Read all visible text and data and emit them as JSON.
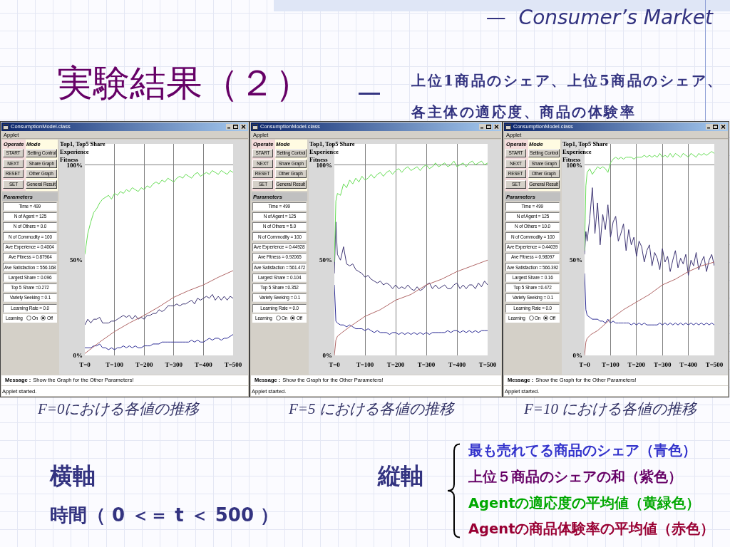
{
  "chart_data": [
    {
      "type": "other",
      "title": "実験結果（２）",
      "subtitle": "上位1商品のシェア、上位5商品のシェア、各主体の適応度、商品の体験率",
      "annotations": [
        "—  Consumer’s Market",
        "—"
      ]
    },
    {
      "type": "other",
      "title": "ConsumptionModel.class",
      "annotations": [
        "Applet",
        "Operate",
        "Mode",
        "START",
        "Setting Control",
        "NEXT",
        "Share Graph",
        "RESET",
        "Other Graph",
        "SET",
        "General Result",
        "Parameters",
        "Time = 499",
        "N of Agent = 125",
        "N of Others = 0.0",
        "N of Commodity = 100",
        "Ave Experience = 0.4004",
        "Ave Fitness = 0.87964",
        "Ave Satisfaction = 556.168",
        "Largest Share = 0.096",
        "Top 5 Share =0.272",
        "Variety Seeking = 0.1",
        "Learning Rate = 0.0",
        "Learning",
        "On",
        "Off",
        "Message :",
        "Show the Graph for the Other Parameters!",
        "Applet started."
      ]
    },
    {
      "type": "line",
      "title": "Top1, Top5 Share\nExperience\nFitness",
      "annotations": [
        "F=0における各値の推移"
      ],
      "x": [
        0,
        10,
        20,
        30,
        40,
        50,
        60,
        70,
        80,
        90,
        100,
        110,
        120,
        130,
        140,
        150,
        160,
        170,
        180,
        190,
        200,
        210,
        220,
        230,
        240,
        250,
        260,
        270,
        280,
        290,
        300,
        310,
        320,
        330,
        340,
        350,
        360,
        370,
        380,
        390,
        400,
        410,
        420,
        430,
        440,
        450,
        460,
        470,
        480,
        490,
        500
      ],
      "series": [
        {
          "color": "#2e2e96",
          "values": [
            4,
            4,
            4,
            5,
            5,
            6,
            4,
            4,
            3,
            4,
            3,
            4,
            4,
            5,
            4,
            5,
            4,
            5,
            4,
            4,
            5,
            5,
            5,
            6,
            6,
            6,
            7,
            7,
            7,
            7,
            7,
            7,
            7,
            7,
            7,
            7,
            8,
            7,
            8,
            7,
            7,
            8,
            9,
            8,
            9,
            9,
            8,
            9,
            9,
            10,
            11
          ]
        },
        {
          "color": "#3d3473",
          "values": [
            16,
            19,
            17,
            19,
            19,
            20,
            17,
            17,
            17,
            18,
            18,
            19,
            20,
            21,
            20,
            21,
            19,
            21,
            19,
            20,
            19,
            21,
            21,
            22,
            22,
            24,
            23,
            24,
            26,
            26,
            26,
            27,
            26,
            27,
            27,
            28,
            29,
            27,
            30,
            29,
            30,
            31,
            30,
            32,
            29,
            31,
            29,
            31,
            29,
            31,
            30
          ]
        },
        {
          "color": "#66dd55",
          "values": [
            53,
            64,
            70,
            75,
            77,
            80,
            82,
            83,
            84,
            82,
            85,
            84,
            86,
            85,
            87,
            86,
            88,
            87,
            86,
            88,
            87,
            89,
            88,
            90,
            91,
            90,
            92,
            91,
            93,
            92,
            91,
            93,
            94,
            93,
            95,
            94,
            93,
            95,
            96,
            94,
            95,
            96,
            95,
            97,
            96,
            95,
            97,
            96,
            95,
            97,
            96
          ]
        },
        {
          "color": "#b06666",
          "x": [
            0,
            25,
            50,
            100,
            150,
            200,
            250,
            300,
            350,
            400,
            450,
            500
          ],
          "values": [
            1,
            4,
            7,
            12.5,
            17,
            21,
            25.5,
            30.5,
            34,
            37,
            41,
            44.5
          ]
        }
      ],
      "xlim": [
        0,
        500
      ],
      "xticks": [
        {
          "value": 0,
          "label": "T=0"
        },
        {
          "value": 100,
          "label": "T=100"
        },
        {
          "value": 200,
          "label": "T=200"
        },
        {
          "value": 300,
          "label": "T=300"
        },
        {
          "value": 400,
          "label": "T=400"
        },
        {
          "value": 500,
          "label": "T=500"
        }
      ],
      "ylim": [
        0,
        111
      ],
      "yticks": [
        {
          "value": 0,
          "label": "0%"
        },
        {
          "value": 50,
          "label": "50%"
        },
        {
          "value": 100,
          "label": "100%"
        }
      ],
      "grid": "x",
      "ref_lines": [
        {
          "axis": "y",
          "value": 100,
          "color": "#7f7f7f"
        }
      ]
    },
    {
      "type": "other",
      "title": "ConsumptionModel.class",
      "annotations": [
        "Applet",
        "Operate",
        "Mode",
        "START",
        "Setting Control",
        "NEXT",
        "Share Graph",
        "RESET",
        "Other Graph",
        "SET",
        "General Result",
        "Parameters",
        "Time = 499",
        "N of Agent = 125",
        "N of Others = 5.0",
        "N of Commodity = 100",
        "Ave Experience = 0.44928",
        "Ave Fitness = 0.92065",
        "Ave Satisfaction = 561.472",
        "Largest Share = 0.104",
        "Top 5 Share =0.352",
        "Variety Seeking = 0.1",
        "Learning Rate = 0.0",
        "Learning",
        "On",
        "Off",
        "Message :",
        "Show the Graph for the Other Parameters!",
        "Applet started."
      ]
    },
    {
      "type": "line",
      "title": "Top1, Top5 Share\nExperience\nFitness",
      "annotations": [
        "F=5 における各値の推移"
      ],
      "x": [
        0,
        5,
        10,
        20,
        30,
        40,
        50,
        60,
        70,
        80,
        90,
        100,
        110,
        120,
        130,
        140,
        150,
        160,
        170,
        180,
        190,
        200,
        210,
        220,
        230,
        240,
        250,
        260,
        270,
        280,
        290,
        300,
        310,
        320,
        330,
        340,
        350,
        360,
        370,
        380,
        390,
        400,
        410,
        420,
        430,
        440,
        450,
        460,
        470,
        480,
        490,
        500
      ],
      "series": [
        {
          "color": "#2e2e96",
          "values": [
            37,
            18,
            17,
            16,
            16,
            15,
            16,
            15,
            14,
            14,
            14,
            13,
            14,
            13,
            12,
            13,
            12,
            12,
            12,
            11,
            12,
            12,
            11,
            12,
            11,
            12,
            11,
            12,
            11,
            12,
            11,
            12,
            11,
            12,
            12,
            12,
            12,
            12,
            13,
            12,
            13,
            13,
            12,
            13,
            12,
            13,
            12,
            13,
            12,
            13,
            13,
            13
          ]
        },
        {
          "color": "#3d3473",
          "values": [
            43,
            70,
            53,
            50,
            57,
            48,
            47,
            48,
            45,
            44,
            43,
            41,
            42,
            40,
            39,
            38,
            39,
            37,
            38,
            37,
            35,
            37,
            35,
            36,
            35,
            37,
            35,
            34,
            36,
            34,
            35,
            37,
            38,
            35,
            37,
            35,
            36,
            37,
            35,
            35,
            37,
            38,
            35,
            37,
            35,
            37,
            37,
            35,
            38,
            36,
            39,
            37
          ]
        },
        {
          "color": "#66dd55",
          "values": [
            49,
            81,
            85,
            84,
            90,
            88,
            92,
            90,
            93,
            91,
            94,
            92,
            93,
            95,
            93,
            95,
            96,
            94,
            96,
            97,
            95,
            97,
            98,
            96,
            98,
            99,
            97,
            98,
            99,
            97,
            99,
            100,
            98,
            99,
            101,
            99,
            100,
            101,
            99,
            100,
            102,
            99,
            100,
            101,
            99,
            101,
            102,
            100,
            101,
            102,
            100,
            101
          ]
        },
        {
          "color": "#b06666",
          "x": [
            0,
            5,
            10,
            25,
            50,
            100,
            150,
            200,
            250,
            300,
            350,
            400,
            450,
            500
          ],
          "values": [
            0,
            8,
            10,
            12,
            15,
            20.5,
            24,
            29,
            32,
            37,
            40,
            44,
            47,
            50
          ]
        }
      ],
      "xlim": [
        0,
        500
      ],
      "xticks": [
        {
          "value": 0,
          "label": "T=0"
        },
        {
          "value": 100,
          "label": "T=100"
        },
        {
          "value": 200,
          "label": "T=200"
        },
        {
          "value": 300,
          "label": "T=300"
        },
        {
          "value": 400,
          "label": "T=400"
        },
        {
          "value": 500,
          "label": "T=500"
        }
      ],
      "ylim": [
        0,
        111
      ],
      "yticks": [
        {
          "value": 0,
          "label": "0%"
        },
        {
          "value": 50,
          "label": "50%"
        },
        {
          "value": 100,
          "label": "100%"
        }
      ],
      "grid": "x",
      "ref_lines": [
        {
          "axis": "y",
          "value": 100,
          "color": "#7f7f7f"
        }
      ]
    },
    {
      "type": "other",
      "title": "ConsumptionModel.class",
      "annotations": [
        "Applet",
        "Operate",
        "Mode",
        "START",
        "Setting Control",
        "NEXT",
        "Share Graph",
        "RESET",
        "Other Graph",
        "SET",
        "General Result",
        "Parameters",
        "Time = 499",
        "N of Agent = 125",
        "N of Others = 10.0",
        "N of Commodity = 100",
        "Ave Experience = 0.44039",
        "Ave Fitness = 0.98097",
        "Ave Satisfaction = 566.392",
        "Largest Share = 0.16",
        "Top 5 Share =0.472",
        "Variety Seeking = 0.1",
        "Learning Rate = 0.0",
        "Learning",
        "On",
        "Off",
        "Message :",
        "Show the Graph for the Other Parameters!",
        "Applet started."
      ]
    },
    {
      "type": "line",
      "title": "Top1, Top5 Share\nExperience\nFitness",
      "annotations": [
        "F=10 における各値の推移"
      ],
      "x": [
        0,
        5,
        10,
        20,
        30,
        40,
        50,
        60,
        70,
        80,
        90,
        100,
        110,
        120,
        130,
        140,
        150,
        160,
        170,
        180,
        190,
        200,
        210,
        220,
        230,
        240,
        250,
        260,
        270,
        280,
        290,
        300,
        310,
        320,
        330,
        340,
        350,
        360,
        370,
        380,
        390,
        400,
        410,
        420,
        430,
        440,
        450,
        460,
        470,
        480,
        490,
        500
      ],
      "series": [
        {
          "color": "#2e2e96",
          "values": [
            43,
            24,
            21,
            20,
            19,
            19,
            19,
            18,
            18,
            17,
            19,
            17,
            18,
            17,
            17,
            17,
            17,
            17,
            17,
            16,
            17,
            16,
            17,
            16,
            17,
            16,
            16,
            16,
            16,
            16,
            17,
            16,
            17,
            16,
            17,
            16,
            17,
            16,
            17,
            16,
            17,
            16,
            17,
            16,
            17,
            16,
            17,
            16,
            17,
            16,
            17,
            16
          ]
        },
        {
          "color": "#3d3473",
          "values": [
            53,
            65,
            60,
            72,
            88,
            64,
            80,
            58,
            74,
            66,
            79,
            62,
            70,
            73,
            60,
            64,
            69,
            55,
            66,
            58,
            62,
            52,
            60,
            57,
            49,
            55,
            58,
            47,
            54,
            51,
            45,
            56,
            49,
            52,
            44,
            50,
            55,
            46,
            51,
            48,
            53,
            42,
            50,
            47,
            54,
            45,
            49,
            52,
            44,
            50,
            53,
            47
          ]
        },
        {
          "color": "#66dd55",
          "values": [
            55,
            89,
            96,
            98,
            95,
            97,
            99,
            98,
            99,
            98,
            96,
            101,
            103,
            104,
            103,
            104,
            103,
            104,
            104,
            104,
            103,
            104,
            104,
            104,
            105,
            104,
            105,
            104,
            105,
            104,
            106,
            104,
            105,
            104,
            106,
            104,
            106,
            105,
            104,
            106,
            105,
            104,
            106,
            105,
            104,
            106,
            105,
            106,
            105,
            106,
            107,
            106
          ]
        },
        {
          "color": "#b06666",
          "x": [
            0,
            5,
            10,
            25,
            50,
            100,
            150,
            200,
            250,
            300,
            350,
            400,
            450,
            500
          ],
          "values": [
            0,
            7,
            9,
            11,
            13,
            19,
            24,
            28,
            32,
            37,
            40,
            44,
            47,
            49
          ]
        }
      ],
      "xlim": [
        0,
        500
      ],
      "xticks": [
        {
          "value": 0,
          "label": "T=0"
        },
        {
          "value": 100,
          "label": "T=100"
        },
        {
          "value": 200,
          "label": "T=200"
        },
        {
          "value": 300,
          "label": "T=300"
        },
        {
          "value": 400,
          "label": "T=400"
        },
        {
          "value": 500,
          "label": "T=500"
        }
      ],
      "ylim": [
        0,
        111
      ],
      "yticks": [
        {
          "value": 0,
          "label": "0%"
        },
        {
          "value": 50,
          "label": "50%"
        },
        {
          "value": 100,
          "label": "100%"
        }
      ],
      "grid": "x",
      "ref_lines": [
        {
          "axis": "y",
          "value": 100,
          "color": "#7f7f7f"
        }
      ]
    },
    {
      "type": "other",
      "annotations": [
        "横軸",
        "時間（ 0 ＜＝ t ＜ 500 ）",
        "縦軸",
        "最も売れてる商品のシェア（青色）",
        "上位５商品のシェアの和（紫色）",
        "Agentの適応度の平均値（黄緑色）",
        "Agentの商品体験率の平均値（赤色）"
      ]
    }
  ]
}
